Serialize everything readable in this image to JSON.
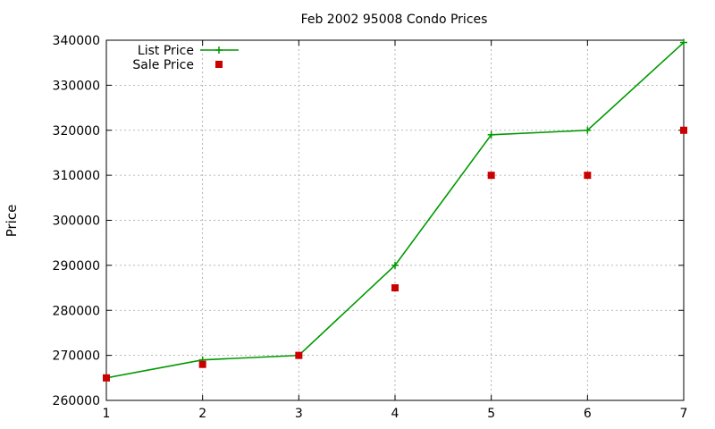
{
  "chart_data": {
    "type": "line",
    "title": "Feb 2002 95008 Condo Prices",
    "xlabel": "",
    "ylabel": "Price",
    "x": [
      1,
      2,
      3,
      4,
      5,
      6,
      7
    ],
    "xlim": [
      1,
      7
    ],
    "ylim": [
      260000,
      340000
    ],
    "xticks": [
      1,
      2,
      3,
      4,
      5,
      6,
      7
    ],
    "yticks": [
      260000,
      270000,
      280000,
      290000,
      300000,
      310000,
      320000,
      330000,
      340000
    ],
    "grid": true,
    "legend_position": "top-left",
    "series": [
      {
        "name": "List Price",
        "style": "linespoints",
        "marker": "plus",
        "color": "#009900",
        "values": [
          265000,
          269000,
          270000,
          290000,
          319000,
          320000,
          339500
        ]
      },
      {
        "name": "Sale Price",
        "style": "points",
        "marker": "square",
        "color": "#cc0000",
        "values": [
          265000,
          268000,
          270000,
          285000,
          310000,
          310000,
          320000
        ]
      }
    ]
  }
}
